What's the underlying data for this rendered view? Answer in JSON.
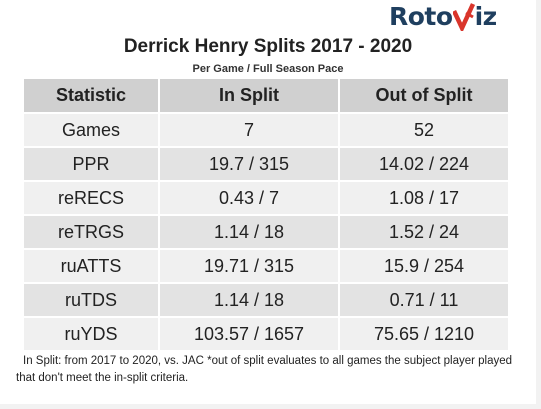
{
  "logo": {
    "part1": "Roto",
    "part2": "iz",
    "mark_color": "#d9352b",
    "text_color": "#1f3f5f"
  },
  "title": "Derrick Henry Splits 2017 - 2020",
  "subtitle": "Per Game / Full Season Pace",
  "table": {
    "headers": [
      "Statistic",
      "In Split",
      "Out of Split"
    ],
    "rows": [
      {
        "stat": "Games",
        "in_split": "7",
        "out_split": "52"
      },
      {
        "stat": "PPR",
        "in_split": "19.7 / 315",
        "out_split": "14.02 / 224"
      },
      {
        "stat": "reRECS",
        "in_split": "0.43 / 7",
        "out_split": "1.08 / 17"
      },
      {
        "stat": "reTRGS",
        "in_split": "1.14 / 18",
        "out_split": "1.52 / 24"
      },
      {
        "stat": "ruATTS",
        "in_split": "19.71 / 315",
        "out_split": "15.9 / 254"
      },
      {
        "stat": "ruTDS",
        "in_split": "1.14 / 18",
        "out_split": "0.71 / 11"
      },
      {
        "stat": "ruYDS",
        "in_split": "103.57 / 1657",
        "out_split": "75.65 / 1210"
      }
    ]
  },
  "footnote": "In Split: from 2017 to 2020, vs. JAC *out of split evaluates to all games the subject player played that don't meet the in-split criteria."
}
